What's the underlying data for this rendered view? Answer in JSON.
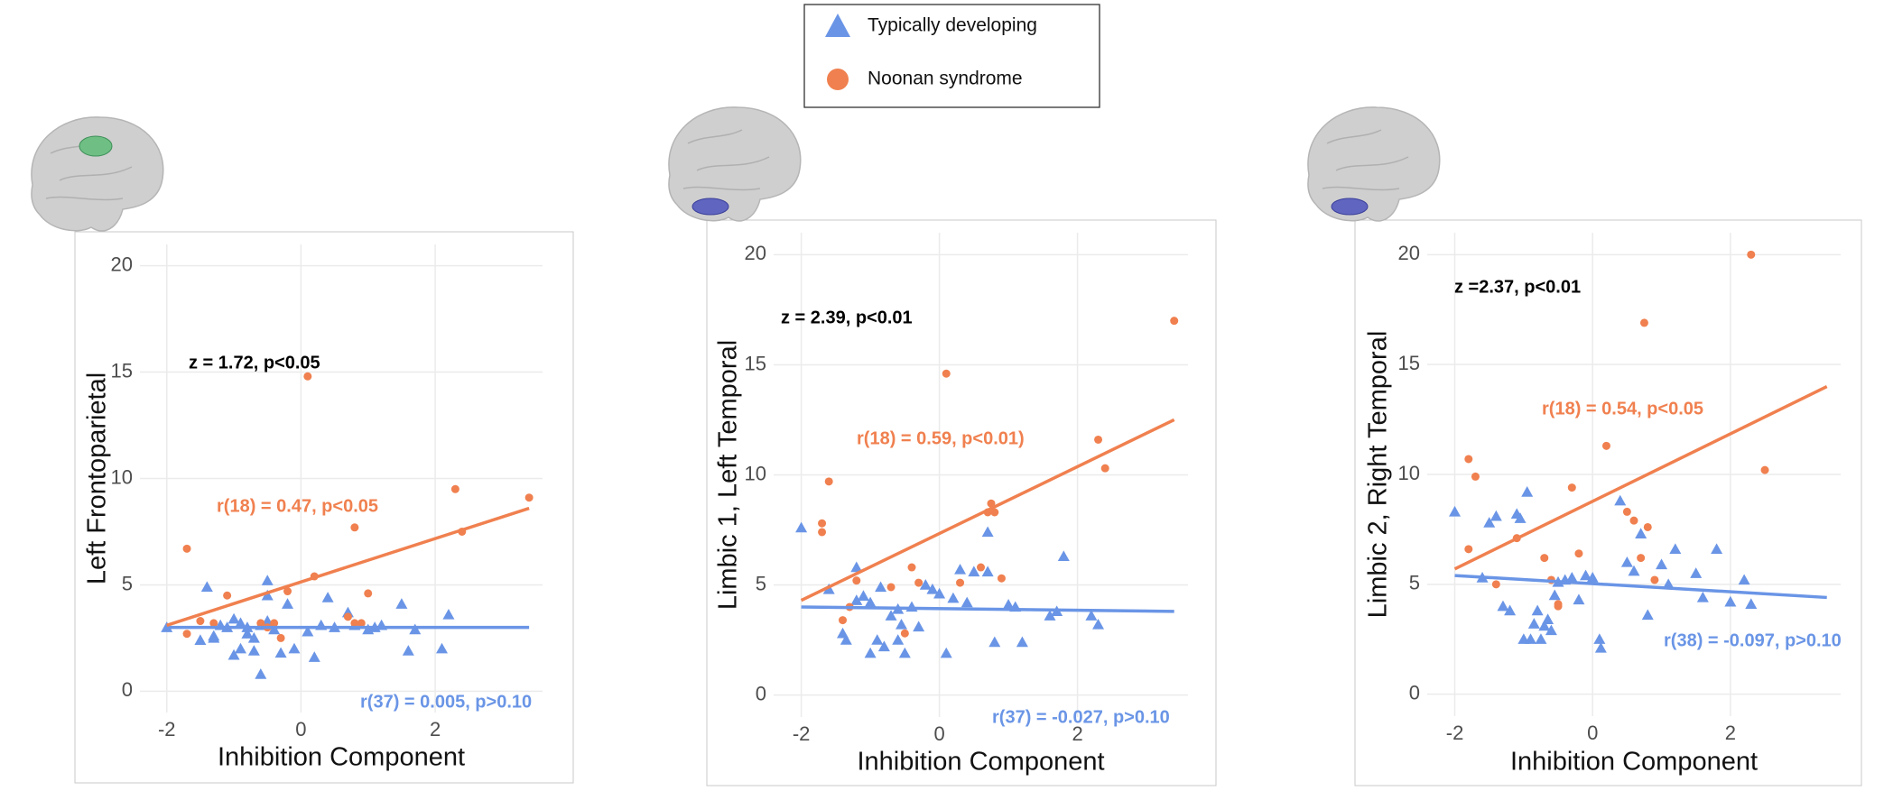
{
  "chart_data": [
    {
      "type": "scatter",
      "xlabel": "Inhibition Component",
      "ylabel": "Left Frontoparietal",
      "xlim": [
        -2.4,
        3.6
      ],
      "ylim": [
        -1,
        21
      ],
      "xticks": [
        -2,
        0,
        2
      ],
      "yticks": [
        0,
        5,
        10,
        15,
        20
      ],
      "grid": true,
      "annotations": [
        "z = 1.72, p<0.05",
        "r(18) = 0.47, p<0.05",
        "r(37) = 0.005, p>0.10"
      ],
      "series": [
        {
          "name": "Typically developing",
          "color": "#6a95e6",
          "marker": "triangle",
          "x": [
            -2,
            -1.5,
            -1.4,
            -1.3,
            -1.2,
            -1.1,
            -1,
            -1,
            -0.9,
            -0.9,
            -0.8,
            -0.8,
            -0.7,
            -0.7,
            -0.6,
            -0.6,
            -0.5,
            -0.5,
            -0.4,
            -0.3,
            -0.2,
            -0.1,
            0.1,
            0.2,
            0.3,
            0.4,
            0.5,
            0.7,
            0.8,
            1,
            1.1,
            1.2,
            1.5,
            1.6,
            1.7,
            2.1,
            2.2,
            -1.3,
            -0.5
          ],
          "values": [
            3,
            2.4,
            4.9,
            2.5,
            3.1,
            3,
            1.7,
            3.4,
            2,
            3.2,
            2.7,
            3,
            1.9,
            2.5,
            3.1,
            0.8,
            5.2,
            3.3,
            2.9,
            1.8,
            4.1,
            2,
            2.8,
            1.6,
            3.1,
            4.4,
            3,
            3.7,
            3.1,
            2.9,
            3,
            3.1,
            4.1,
            1.9,
            2.9,
            2,
            3.6,
            2.6,
            4.5
          ],
          "fit": {
            "x": [
              -2,
              3.4
            ],
            "values": [
              3.0,
              3.0
            ]
          }
        },
        {
          "name": "Noonan syndrome",
          "color": "#f0804f",
          "marker": "circle",
          "x": [
            -1.7,
            -1.7,
            -1.5,
            -1.3,
            -1.1,
            -0.6,
            -0.4,
            -0.3,
            -0.2,
            0.1,
            0.2,
            0.7,
            0.8,
            0.8,
            0.9,
            1,
            2.3,
            2.4,
            3.4,
            -0.5
          ],
          "values": [
            6.7,
            2.7,
            3.3,
            3.2,
            4.5,
            3.2,
            3.2,
            2.5,
            4.7,
            14.8,
            5.4,
            3.5,
            3.2,
            7.7,
            3.2,
            4.6,
            9.5,
            7.5,
            9.1,
            3
          ],
          "fit": {
            "x": [
              -2,
              3.4
            ],
            "values": [
              3.1,
              8.6
            ]
          }
        }
      ]
    },
    {
      "type": "scatter",
      "xlabel": "Inhibition Component",
      "ylabel": "Limbic 1, Left Temporal",
      "xlim": [
        -2.4,
        3.6
      ],
      "ylim": [
        -1,
        21
      ],
      "xticks": [
        -2,
        0,
        2
      ],
      "yticks": [
        0,
        5,
        10,
        15,
        20
      ],
      "grid": true,
      "annotations": [
        "z = 2.39, p<0.01",
        "r(18) = 0.59, p<0.01)",
        "r(37) = -0.027, p>0.10"
      ],
      "series": [
        {
          "name": "Typically developing",
          "color": "#6a95e6",
          "marker": "triangle",
          "x": [
            -2,
            -1.6,
            -1.4,
            -1.35,
            -1.2,
            -1.1,
            -1,
            -1,
            -0.9,
            -0.85,
            -0.8,
            -0.7,
            -0.6,
            -0.55,
            -0.5,
            -0.4,
            -0.3,
            -0.2,
            -0.1,
            0,
            0.1,
            0.2,
            0.3,
            0.5,
            0.7,
            0.7,
            0.8,
            1,
            1.1,
            1.2,
            1.6,
            1.7,
            1.8,
            2.2,
            2.3,
            -1.2,
            -0.6,
            0.4
          ],
          "values": [
            7.6,
            4.8,
            2.8,
            2.5,
            4.3,
            4.5,
            1.9,
            4.2,
            2.5,
            4.9,
            2.2,
            3.6,
            3.9,
            3.2,
            1.9,
            4,
            3.1,
            5,
            4.8,
            4.6,
            1.9,
            4.4,
            5.7,
            5.6,
            7.4,
            5.6,
            2.4,
            4.1,
            4,
            2.4,
            3.6,
            3.8,
            6.3,
            3.6,
            3.2,
            5.8,
            2.5,
            4.2
          ],
          "fit": {
            "x": [
              -2,
              3.4
            ],
            "values": [
              4.0,
              3.8
            ]
          }
        },
        {
          "name": "Noonan syndrome",
          "color": "#f0804f",
          "marker": "circle",
          "x": [
            -1.7,
            -1.7,
            -1.6,
            -1.4,
            -1.2,
            -0.7,
            -0.5,
            -0.4,
            -0.3,
            0.1,
            0.3,
            0.6,
            0.7,
            0.75,
            0.8,
            0.9,
            2.3,
            2.4,
            3.4,
            -1.3
          ],
          "values": [
            7.8,
            7.4,
            9.7,
            3.4,
            5.2,
            4.9,
            2.8,
            5.8,
            5.1,
            14.6,
            5.1,
            5.8,
            8.3,
            8.7,
            8.3,
            5.3,
            11.6,
            10.3,
            17,
            4
          ],
          "fit": {
            "x": [
              -2,
              3.4
            ],
            "values": [
              4.3,
              12.5
            ]
          }
        }
      ]
    },
    {
      "type": "scatter",
      "xlabel": "Inhibition Component",
      "ylabel": "Limbic 2, Right Temporal",
      "xlim": [
        -2.4,
        3.6
      ],
      "ylim": [
        -1,
        21
      ],
      "xticks": [
        -2,
        0,
        2
      ],
      "yticks": [
        0,
        5,
        10,
        15,
        20
      ],
      "grid": true,
      "annotations": [
        "z =2.37, p<0.01",
        "r(18) = 0.54, p<0.05",
        "r(38) = -0.097, p>0.10"
      ],
      "series": [
        {
          "name": "Typically developing",
          "color": "#6a95e6",
          "marker": "triangle",
          "x": [
            -2,
            -1.6,
            -1.5,
            -1.4,
            -1.3,
            -1.2,
            -1.1,
            -1.05,
            -1,
            -0.95,
            -0.9,
            -0.85,
            -0.8,
            -0.75,
            -0.7,
            -0.65,
            -0.6,
            -0.55,
            -0.5,
            -0.4,
            -0.3,
            -0.2,
            -0.1,
            0,
            0.1,
            0.12,
            0.4,
            0.5,
            0.6,
            0.7,
            0.8,
            1,
            1.1,
            1.2,
            1.5,
            1.6,
            1.8,
            2,
            2.2,
            2.3
          ],
          "values": [
            8.3,
            5.3,
            7.8,
            8.1,
            4,
            3.8,
            8.2,
            8,
            2.5,
            9.2,
            2.5,
            3.2,
            3.8,
            2.5,
            3.1,
            3.4,
            2.9,
            4.5,
            5.1,
            5.2,
            5.3,
            4.3,
            5.4,
            5.3,
            2.5,
            2.1,
            8.8,
            6,
            5.6,
            7.3,
            3.6,
            5.9,
            5,
            6.6,
            5.5,
            4.4,
            6.6,
            4.2,
            5.2,
            4.1
          ],
          "fit": {
            "x": [
              -2,
              3.4
            ],
            "values": [
              5.4,
              4.4
            ]
          }
        },
        {
          "name": "Noonan syndrome",
          "color": "#f0804f",
          "marker": "circle",
          "x": [
            -1.8,
            -1.7,
            -1.8,
            -1.4,
            -1.1,
            -0.7,
            -0.5,
            -0.3,
            -0.6,
            0.2,
            0.5,
            0.7,
            0.75,
            0.8,
            0.9,
            2.3,
            2.5,
            -0.5,
            0.6,
            -0.2
          ],
          "values": [
            10.7,
            9.9,
            6.6,
            5,
            7.1,
            6.2,
            4,
            9.4,
            5.2,
            11.3,
            8.3,
            6.2,
            16.9,
            7.6,
            5.2,
            20,
            10.2,
            4.1,
            7.9,
            6.4
          ],
          "fit": {
            "x": [
              -2,
              3.4
            ],
            "values": [
              5.7,
              14
            ]
          }
        }
      ]
    }
  ]
}
